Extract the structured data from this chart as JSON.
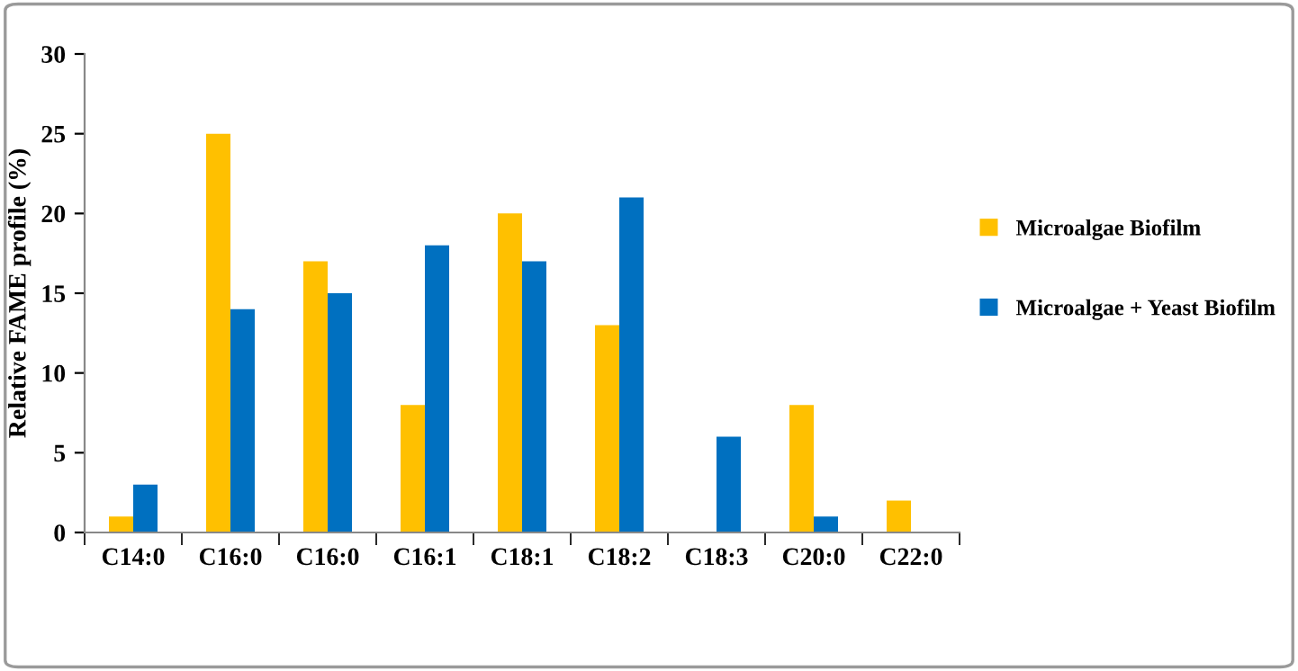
{
  "chart_data": {
    "type": "bar",
    "ylabel": "Relative FAME profile (%)",
    "categories": [
      "C14:0",
      "C16:0",
      "C16:0",
      "C16:1",
      "C18:1",
      "C18:2",
      "C18:3",
      "C20:0",
      "C22:0"
    ],
    "series": [
      {
        "name": "Microalgae Biofilm",
        "color": "#ffc000",
        "values": [
          1,
          25,
          17,
          8,
          20,
          13,
          0,
          8,
          2
        ]
      },
      {
        "name": "Microalgae + Yeast Biofilm",
        "color": "#0070c0",
        "values": [
          3,
          14,
          15,
          18,
          17,
          21,
          6,
          1,
          0
        ]
      }
    ],
    "ylim": [
      0,
      30
    ],
    "yticks": [
      0,
      5,
      10,
      15,
      20,
      25,
      30
    ],
    "grid": false,
    "legend": "right"
  }
}
